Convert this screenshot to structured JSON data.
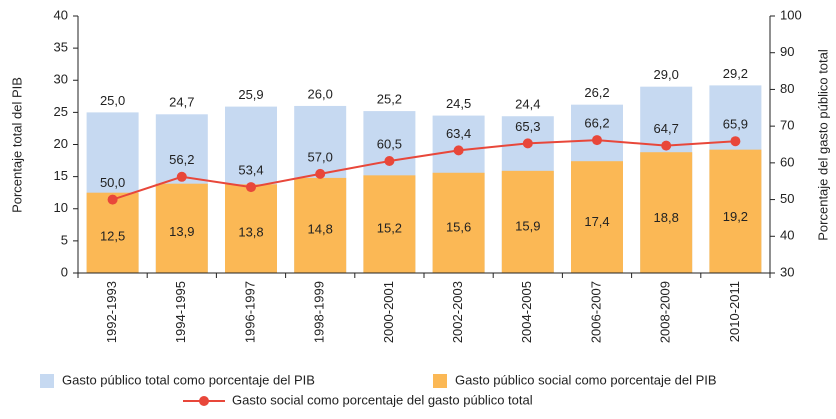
{
  "chart_data": {
    "type": "bar",
    "barmode": "overlay",
    "ylabel": "Porcentaje total del PIB",
    "y2label": "Porcentaje del gasto público total",
    "categories": [
      "1992-1993",
      "1994-1995",
      "1996-1997",
      "1998-1999",
      "2000-2001",
      "2002-2003",
      "2004-2005",
      "2006-2007",
      "2008-2009",
      "2010-2011"
    ],
    "series": [
      {
        "name": "Gasto público total como porcentaje del PIB",
        "type": "bar",
        "color": "#c6d9f1",
        "values": [
          25.0,
          24.7,
          25.9,
          26.0,
          25.2,
          24.5,
          24.4,
          26.2,
          29.0,
          29.2
        ],
        "value_labels": [
          "25,0",
          "24,7",
          "25,9",
          "26,0",
          "25,2",
          "24,5",
          "24,4",
          "26,2",
          "29,0",
          "29,2"
        ]
      },
      {
        "name": "Gasto público social como porcentaje del PIB",
        "type": "bar",
        "color": "#fbb855",
        "values": [
          12.5,
          13.9,
          13.8,
          14.8,
          15.2,
          15.6,
          15.9,
          17.4,
          18.8,
          19.2
        ],
        "value_labels": [
          "12,5",
          "13,9",
          "13,8",
          "14,8",
          "15,2",
          "15,6",
          "15,9",
          "17,4",
          "18,8",
          "19,2"
        ]
      },
      {
        "name": "Gasto social como porcentaje del gasto público total",
        "type": "line",
        "axis": "y2",
        "color": "#e8473a",
        "values": [
          50.0,
          56.2,
          53.4,
          57.0,
          60.5,
          63.4,
          65.3,
          66.2,
          64.7,
          65.9
        ],
        "value_labels": [
          "50,0",
          "56,2",
          "53,4",
          "57,0",
          "60,5",
          "63,4",
          "65,3",
          "66,2",
          "64,7",
          "65,9"
        ]
      }
    ],
    "ylim": [
      0,
      40
    ],
    "yticks": [
      0,
      5,
      10,
      15,
      20,
      25,
      30,
      35,
      40
    ],
    "y2lim": [
      30,
      100
    ],
    "y2ticks": [
      30,
      40,
      50,
      60,
      70,
      80,
      90,
      100
    ]
  }
}
